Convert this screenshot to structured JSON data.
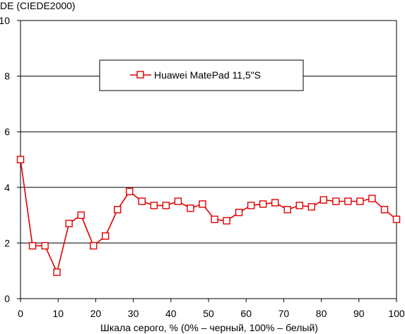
{
  "chart_data": {
    "type": "line",
    "title": "",
    "ylabel": "DE (CIEDE2000)",
    "xlabel": "Шкала серого, % (0% – черный, 100% – белый)",
    "xlim": [
      0,
      100
    ],
    "ylim": [
      0,
      10
    ],
    "x_ticks": [
      0,
      10,
      20,
      30,
      40,
      50,
      60,
      70,
      80,
      90,
      100
    ],
    "y_ticks": [
      0,
      2,
      4,
      6,
      8,
      10
    ],
    "grid": "horizontal",
    "legend_position": "top-center",
    "series": [
      {
        "name": "Huawei MatePad 11,5\"S",
        "color": "#e00000",
        "marker": "square-open",
        "x": [
          0,
          3.2,
          6.5,
          9.7,
          12.9,
          16.1,
          19.4,
          22.6,
          25.8,
          29.0,
          32.3,
          35.5,
          38.7,
          41.9,
          45.2,
          48.4,
          51.6,
          54.8,
          58.1,
          61.3,
          64.5,
          67.7,
          71.0,
          74.2,
          77.4,
          80.6,
          83.9,
          87.1,
          90.3,
          93.5,
          96.8,
          100
        ],
        "y": [
          5.0,
          1.9,
          1.9,
          0.95,
          2.7,
          3.0,
          1.9,
          2.25,
          3.2,
          3.85,
          3.5,
          3.35,
          3.35,
          3.5,
          3.25,
          3.4,
          2.85,
          2.8,
          3.1,
          3.35,
          3.4,
          3.45,
          3.2,
          3.35,
          3.3,
          3.55,
          3.5,
          3.5,
          3.5,
          3.6,
          3.2,
          2.85
        ]
      }
    ]
  }
}
